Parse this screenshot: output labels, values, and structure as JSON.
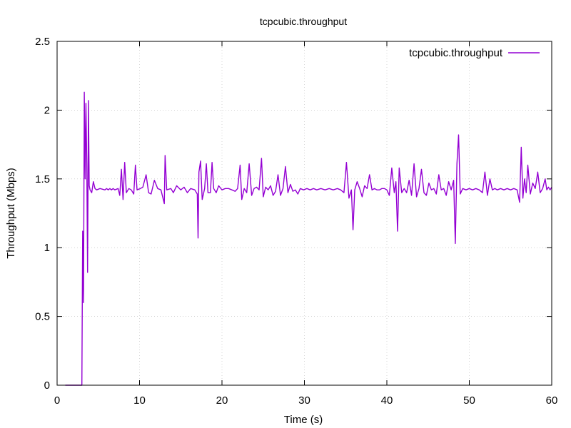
{
  "chart_data": {
    "type": "line",
    "title": "tcpcubic.throughput",
    "xlabel": "Time (s)",
    "ylabel": "Throughput (Mbps)",
    "xlim": [
      0,
      60
    ],
    "ylim": [
      0,
      2.5
    ],
    "xticks": [
      0,
      10,
      20,
      30,
      40,
      50,
      60
    ],
    "yticks": [
      0,
      0.5,
      1,
      1.5,
      2,
      2.5
    ],
    "xtick_labels": [
      "0",
      "10",
      "20",
      "30",
      "40",
      "50",
      "60"
    ],
    "ytick_labels": [
      "0",
      "0.5",
      "1",
      "1.5",
      "2",
      "2.5"
    ],
    "grid": true,
    "legend_position": "top-right",
    "series": [
      {
        "name": "tcpcubic.throughput",
        "color": "#9400d3",
        "points": [
          [
            1.0,
            0.0
          ],
          [
            3.0,
            0.0
          ],
          [
            3.1,
            1.12
          ],
          [
            3.2,
            0.6
          ],
          [
            3.3,
            2.13
          ],
          [
            3.4,
            1.5
          ],
          [
            3.5,
            2.05
          ],
          [
            3.6,
            1.6
          ],
          [
            3.7,
            0.82
          ],
          [
            3.8,
            2.07
          ],
          [
            3.9,
            1.45
          ],
          [
            4.0,
            1.42
          ],
          [
            4.2,
            1.4
          ],
          [
            4.4,
            1.48
          ],
          [
            4.6,
            1.43
          ],
          [
            4.8,
            1.42
          ],
          [
            5.2,
            1.43
          ],
          [
            5.8,
            1.42
          ],
          [
            6.0,
            1.43
          ],
          [
            6.2,
            1.42
          ],
          [
            6.4,
            1.43
          ],
          [
            6.6,
            1.42
          ],
          [
            6.8,
            1.43
          ],
          [
            7.0,
            1.42
          ],
          [
            7.4,
            1.43
          ],
          [
            7.6,
            1.38
          ],
          [
            7.8,
            1.57
          ],
          [
            8.0,
            1.35
          ],
          [
            8.2,
            1.62
          ],
          [
            8.4,
            1.4
          ],
          [
            8.7,
            1.43
          ],
          [
            9.0,
            1.42
          ],
          [
            9.3,
            1.39
          ],
          [
            9.5,
            1.6
          ],
          [
            9.7,
            1.42
          ],
          [
            10.1,
            1.43
          ],
          [
            10.4,
            1.44
          ],
          [
            10.8,
            1.53
          ],
          [
            11.1,
            1.4
          ],
          [
            11.4,
            1.39
          ],
          [
            11.8,
            1.49
          ],
          [
            12.2,
            1.43
          ],
          [
            12.6,
            1.42
          ],
          [
            13.0,
            1.32
          ],
          [
            13.1,
            1.67
          ],
          [
            13.3,
            1.42
          ],
          [
            13.8,
            1.43
          ],
          [
            14.1,
            1.4
          ],
          [
            14.5,
            1.45
          ],
          [
            15.0,
            1.42
          ],
          [
            15.4,
            1.44
          ],
          [
            15.8,
            1.4
          ],
          [
            16.2,
            1.43
          ],
          [
            16.7,
            1.42
          ],
          [
            17.0,
            1.39
          ],
          [
            17.1,
            1.07
          ],
          [
            17.2,
            1.55
          ],
          [
            17.4,
            1.63
          ],
          [
            17.6,
            1.35
          ],
          [
            17.9,
            1.43
          ],
          [
            18.1,
            1.61
          ],
          [
            18.3,
            1.4
          ],
          [
            18.6,
            1.4
          ],
          [
            18.8,
            1.62
          ],
          [
            19.0,
            1.43
          ],
          [
            19.3,
            1.4
          ],
          [
            19.6,
            1.45
          ],
          [
            20.0,
            1.42
          ],
          [
            20.4,
            1.43
          ],
          [
            20.8,
            1.43
          ],
          [
            21.2,
            1.42
          ],
          [
            21.6,
            1.41
          ],
          [
            21.9,
            1.43
          ],
          [
            22.2,
            1.6
          ],
          [
            22.4,
            1.35
          ],
          [
            22.7,
            1.43
          ],
          [
            23.0,
            1.4
          ],
          [
            23.3,
            1.61
          ],
          [
            23.6,
            1.38
          ],
          [
            23.9,
            1.43
          ],
          [
            24.2,
            1.44
          ],
          [
            24.5,
            1.42
          ],
          [
            24.8,
            1.65
          ],
          [
            25.0,
            1.37
          ],
          [
            25.3,
            1.44
          ],
          [
            25.6,
            1.42
          ],
          [
            25.9,
            1.45
          ],
          [
            26.2,
            1.38
          ],
          [
            26.5,
            1.41
          ],
          [
            26.8,
            1.53
          ],
          [
            27.1,
            1.38
          ],
          [
            27.4,
            1.43
          ],
          [
            27.7,
            1.59
          ],
          [
            28.0,
            1.4
          ],
          [
            28.3,
            1.46
          ],
          [
            28.6,
            1.41
          ],
          [
            28.9,
            1.42
          ],
          [
            29.2,
            1.39
          ],
          [
            29.5,
            1.43
          ],
          [
            29.9,
            1.42
          ],
          [
            30.3,
            1.43
          ],
          [
            30.7,
            1.42
          ],
          [
            31.1,
            1.43
          ],
          [
            31.5,
            1.42
          ],
          [
            32.0,
            1.43
          ],
          [
            32.5,
            1.42
          ],
          [
            33.0,
            1.43
          ],
          [
            33.5,
            1.42
          ],
          [
            34.0,
            1.43
          ],
          [
            34.4,
            1.42
          ],
          [
            34.8,
            1.4
          ],
          [
            35.1,
            1.62
          ],
          [
            35.4,
            1.36
          ],
          [
            35.7,
            1.42
          ],
          [
            35.9,
            1.13
          ],
          [
            36.1,
            1.42
          ],
          [
            36.4,
            1.48
          ],
          [
            36.7,
            1.43
          ],
          [
            37.0,
            1.37
          ],
          [
            37.3,
            1.45
          ],
          [
            37.6,
            1.43
          ],
          [
            37.9,
            1.53
          ],
          [
            38.2,
            1.42
          ],
          [
            38.5,
            1.43
          ],
          [
            38.8,
            1.42
          ],
          [
            39.1,
            1.42
          ],
          [
            39.4,
            1.43
          ],
          [
            39.7,
            1.43
          ],
          [
            40.0,
            1.42
          ],
          [
            40.3,
            1.38
          ],
          [
            40.6,
            1.58
          ],
          [
            40.9,
            1.4
          ],
          [
            41.1,
            1.48
          ],
          [
            41.3,
            1.12
          ],
          [
            41.5,
            1.58
          ],
          [
            41.8,
            1.4
          ],
          [
            42.1,
            1.43
          ],
          [
            42.4,
            1.4
          ],
          [
            42.7,
            1.49
          ],
          [
            43.0,
            1.38
          ],
          [
            43.3,
            1.61
          ],
          [
            43.6,
            1.37
          ],
          [
            43.9,
            1.43
          ],
          [
            44.2,
            1.57
          ],
          [
            44.5,
            1.4
          ],
          [
            44.8,
            1.38
          ],
          [
            45.1,
            1.47
          ],
          [
            45.4,
            1.42
          ],
          [
            45.7,
            1.43
          ],
          [
            46.0,
            1.39
          ],
          [
            46.3,
            1.53
          ],
          [
            46.6,
            1.42
          ],
          [
            46.9,
            1.43
          ],
          [
            47.2,
            1.38
          ],
          [
            47.5,
            1.48
          ],
          [
            47.8,
            1.42
          ],
          [
            48.1,
            1.49
          ],
          [
            48.3,
            1.03
          ],
          [
            48.5,
            1.61
          ],
          [
            48.7,
            1.82
          ],
          [
            48.9,
            1.39
          ],
          [
            49.2,
            1.43
          ],
          [
            49.6,
            1.42
          ],
          [
            50.0,
            1.43
          ],
          [
            50.4,
            1.42
          ],
          [
            50.8,
            1.43
          ],
          [
            51.2,
            1.42
          ],
          [
            51.6,
            1.4
          ],
          [
            51.9,
            1.55
          ],
          [
            52.2,
            1.38
          ],
          [
            52.5,
            1.5
          ],
          [
            52.8,
            1.42
          ],
          [
            53.1,
            1.43
          ],
          [
            53.4,
            1.42
          ],
          [
            53.8,
            1.43
          ],
          [
            54.2,
            1.42
          ],
          [
            54.6,
            1.43
          ],
          [
            55.0,
            1.42
          ],
          [
            55.4,
            1.43
          ],
          [
            55.8,
            1.42
          ],
          [
            56.1,
            1.33
          ],
          [
            56.3,
            1.73
          ],
          [
            56.5,
            1.36
          ],
          [
            56.7,
            1.5
          ],
          [
            56.9,
            1.4
          ],
          [
            57.1,
            1.6
          ],
          [
            57.4,
            1.39
          ],
          [
            57.7,
            1.47
          ],
          [
            58.0,
            1.43
          ],
          [
            58.3,
            1.55
          ],
          [
            58.6,
            1.4
          ],
          [
            58.9,
            1.43
          ],
          [
            59.2,
            1.5
          ],
          [
            59.4,
            1.42
          ],
          [
            59.6,
            1.44
          ],
          [
            59.8,
            1.42
          ],
          [
            60.0,
            1.44
          ]
        ]
      }
    ]
  }
}
